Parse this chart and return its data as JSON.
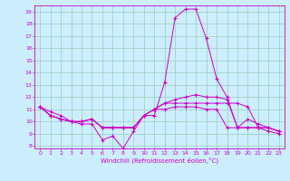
{
  "xlabel": "Windchill (Refroidissement éolien,°C)",
  "background_color": "#cceeff",
  "line_color": "#cc00cc",
  "grid_color": "#99ccbb",
  "xlim": [
    -0.5,
    23.5
  ],
  "ylim": [
    7.8,
    19.5
  ],
  "yticks": [
    8,
    9,
    10,
    11,
    12,
    13,
    14,
    15,
    16,
    17,
    18,
    19
  ],
  "xticks": [
    0,
    1,
    2,
    3,
    4,
    5,
    6,
    7,
    8,
    9,
    10,
    11,
    12,
    13,
    14,
    15,
    16,
    17,
    18,
    19,
    20,
    21,
    22,
    23
  ],
  "series": [
    [
      11.2,
      10.8,
      10.5,
      10.0,
      9.8,
      9.8,
      8.5,
      8.8,
      7.8,
      9.2,
      10.5,
      10.5,
      13.2,
      18.5,
      19.2,
      19.2,
      16.8,
      13.5,
      12.0,
      9.5,
      10.2,
      9.8,
      9.5,
      9.2
    ],
    [
      11.2,
      10.5,
      10.2,
      10.0,
      10.0,
      10.2,
      9.5,
      9.5,
      9.5,
      9.5,
      10.5,
      11.0,
      11.5,
      11.8,
      12.0,
      12.2,
      12.0,
      12.0,
      11.8,
      9.5,
      9.5,
      9.5,
      9.5,
      9.2
    ],
    [
      11.2,
      10.5,
      10.2,
      10.0,
      10.0,
      10.2,
      9.5,
      9.5,
      9.5,
      9.5,
      10.5,
      11.0,
      11.5,
      11.5,
      11.5,
      11.5,
      11.5,
      11.5,
      11.5,
      11.5,
      11.2,
      9.5,
      9.5,
      9.2
    ],
    [
      11.2,
      10.5,
      10.2,
      10.0,
      10.0,
      10.2,
      9.5,
      9.5,
      9.5,
      9.5,
      10.5,
      11.0,
      11.0,
      11.2,
      11.2,
      11.2,
      11.0,
      11.0,
      9.5,
      9.5,
      9.5,
      9.5,
      9.2,
      9.0
    ]
  ]
}
